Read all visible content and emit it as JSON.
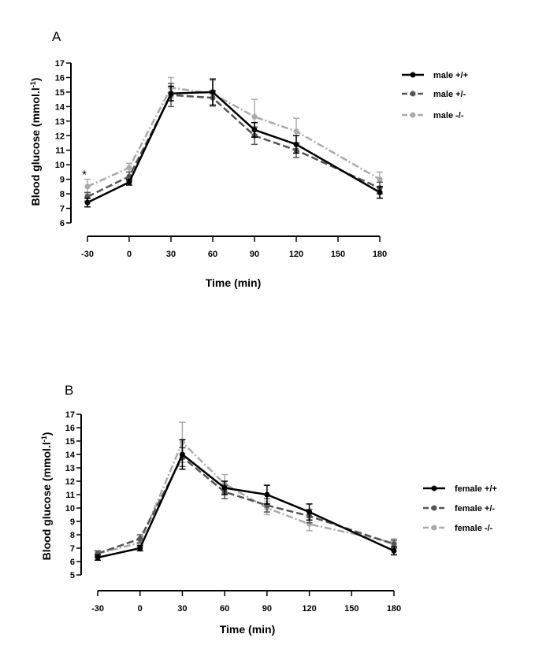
{
  "figure": {
    "panels": [
      {
        "panel_label": "A",
        "x_title": "Time (min)",
        "y_title_main": "Blood glucose (mmol.l",
        "y_title_sup": "-1",
        "y_title_end": ")",
        "annotation": "*",
        "legend": [
          "male +/+",
          "male +/-",
          "male -/-"
        ]
      },
      {
        "panel_label": "B",
        "x_title": "Time (min)",
        "y_title_main": "Blood glucose (mmol.l",
        "y_title_sup": "-1",
        "y_title_end": ")",
        "legend": [
          "female +/+",
          "female +/-",
          "female -/-"
        ]
      }
    ]
  },
  "colors": {
    "wt": "#000000",
    "het": "#555555",
    "ko": "#aaaaaa",
    "star": "#1a1a5e"
  },
  "chart_data": [
    {
      "type": "line",
      "panel": "A",
      "xlabel": "Time (min)",
      "ylabel": "Blood glucose (mmol.l-1)",
      "x_ticks": [
        -30,
        0,
        30,
        60,
        90,
        120,
        150,
        180
      ],
      "y_ticks": [
        6,
        7,
        8,
        9,
        10,
        11,
        12,
        13,
        14,
        15,
        16,
        17
      ],
      "xlim": [
        -30,
        180
      ],
      "ylim": [
        6,
        17
      ],
      "x": [
        -30,
        0,
        30,
        60,
        90,
        120,
        180
      ],
      "legend_position": "right",
      "annotations": [
        {
          "text": "*",
          "x": -30,
          "y": 9.4
        }
      ],
      "series": [
        {
          "name": "male +/+",
          "style": "solid",
          "color": "#000000",
          "values": [
            7.4,
            8.8,
            14.9,
            15.0,
            12.4,
            11.4,
            8.1
          ],
          "errors": [
            0.3,
            0.2,
            0.5,
            0.9,
            0.5,
            0.6,
            0.4
          ]
        },
        {
          "name": "male +/-",
          "style": "dashed",
          "color": "#555555",
          "values": [
            7.8,
            9.2,
            14.8,
            14.6,
            12.0,
            11.0,
            8.4
          ],
          "errors": [
            0.3,
            0.3,
            0.8,
            0.5,
            0.6,
            0.5,
            0.4
          ]
        },
        {
          "name": "male -/-",
          "style": "dashdot",
          "color": "#aaaaaa",
          "values": [
            8.5,
            9.8,
            15.3,
            14.9,
            13.3,
            12.3,
            9.0
          ],
          "errors": [
            0.5,
            0.3,
            0.7,
            0.9,
            1.2,
            0.9,
            0.5
          ]
        }
      ]
    },
    {
      "type": "line",
      "panel": "B",
      "xlabel": "Time (min)",
      "ylabel": "Blood glucose (mmol.l-1)",
      "x_ticks": [
        -30,
        0,
        30,
        60,
        90,
        120,
        150,
        180
      ],
      "y_ticks": [
        5,
        6,
        7,
        8,
        9,
        10,
        11,
        12,
        13,
        14,
        15,
        16,
        17
      ],
      "xlim": [
        -30,
        180
      ],
      "ylim": [
        5,
        17
      ],
      "x": [
        -30,
        0,
        30,
        60,
        90,
        120,
        180
      ],
      "legend_position": "right",
      "series": [
        {
          "name": "female +/+",
          "style": "solid",
          "color": "#000000",
          "values": [
            6.3,
            7.0,
            14.0,
            11.5,
            11.0,
            9.7,
            6.8
          ],
          "errors": [
            0.2,
            0.2,
            1.1,
            0.5,
            0.7,
            0.6,
            0.3
          ]
        },
        {
          "name": "female +/-",
          "style": "dashed",
          "color": "#555555",
          "values": [
            6.6,
            7.7,
            13.8,
            11.2,
            10.2,
            9.4,
            7.3
          ],
          "errors": [
            0.2,
            0.3,
            0.7,
            0.5,
            0.5,
            0.5,
            0.3
          ]
        },
        {
          "name": "female -/-",
          "style": "dashdot",
          "color": "#aaaaaa",
          "values": [
            6.6,
            7.4,
            14.9,
            11.8,
            10.0,
            8.8,
            7.4
          ],
          "errors": [
            0.2,
            0.3,
            1.5,
            0.7,
            0.5,
            0.5,
            0.3
          ]
        }
      ]
    }
  ]
}
